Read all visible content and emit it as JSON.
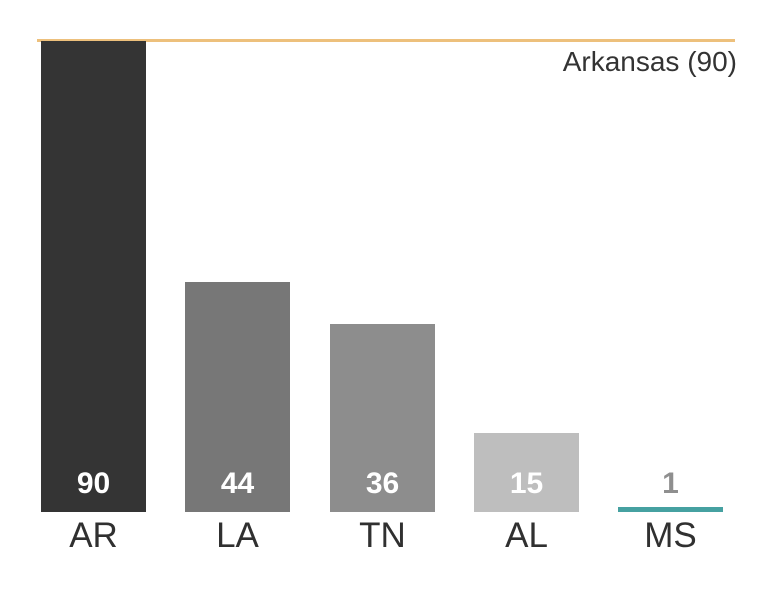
{
  "chart_data": {
    "type": "bar",
    "title": "",
    "categories": [
      "AR",
      "LA",
      "TN",
      "AL",
      "MS"
    ],
    "values": [
      90,
      44,
      36,
      15,
      1
    ],
    "xlabel": "",
    "ylabel": "",
    "ylim": [
      0,
      90
    ],
    "grid": false,
    "legend": false,
    "axes_visible": false,
    "bar_colors": [
      "#343434",
      "#777777",
      "#8d8d8d",
      "#bebebe",
      "#46a1a1"
    ],
    "value_label_colors": [
      "#ffffff",
      "#ffffff",
      "#ffffff",
      "#ffffff",
      "#8f8f8f"
    ],
    "axis_label_color": "#303030",
    "annotation": {
      "text": "Arkansas (90)",
      "value": 90,
      "line_color": "#edc07c",
      "text_color": "#333333"
    }
  }
}
